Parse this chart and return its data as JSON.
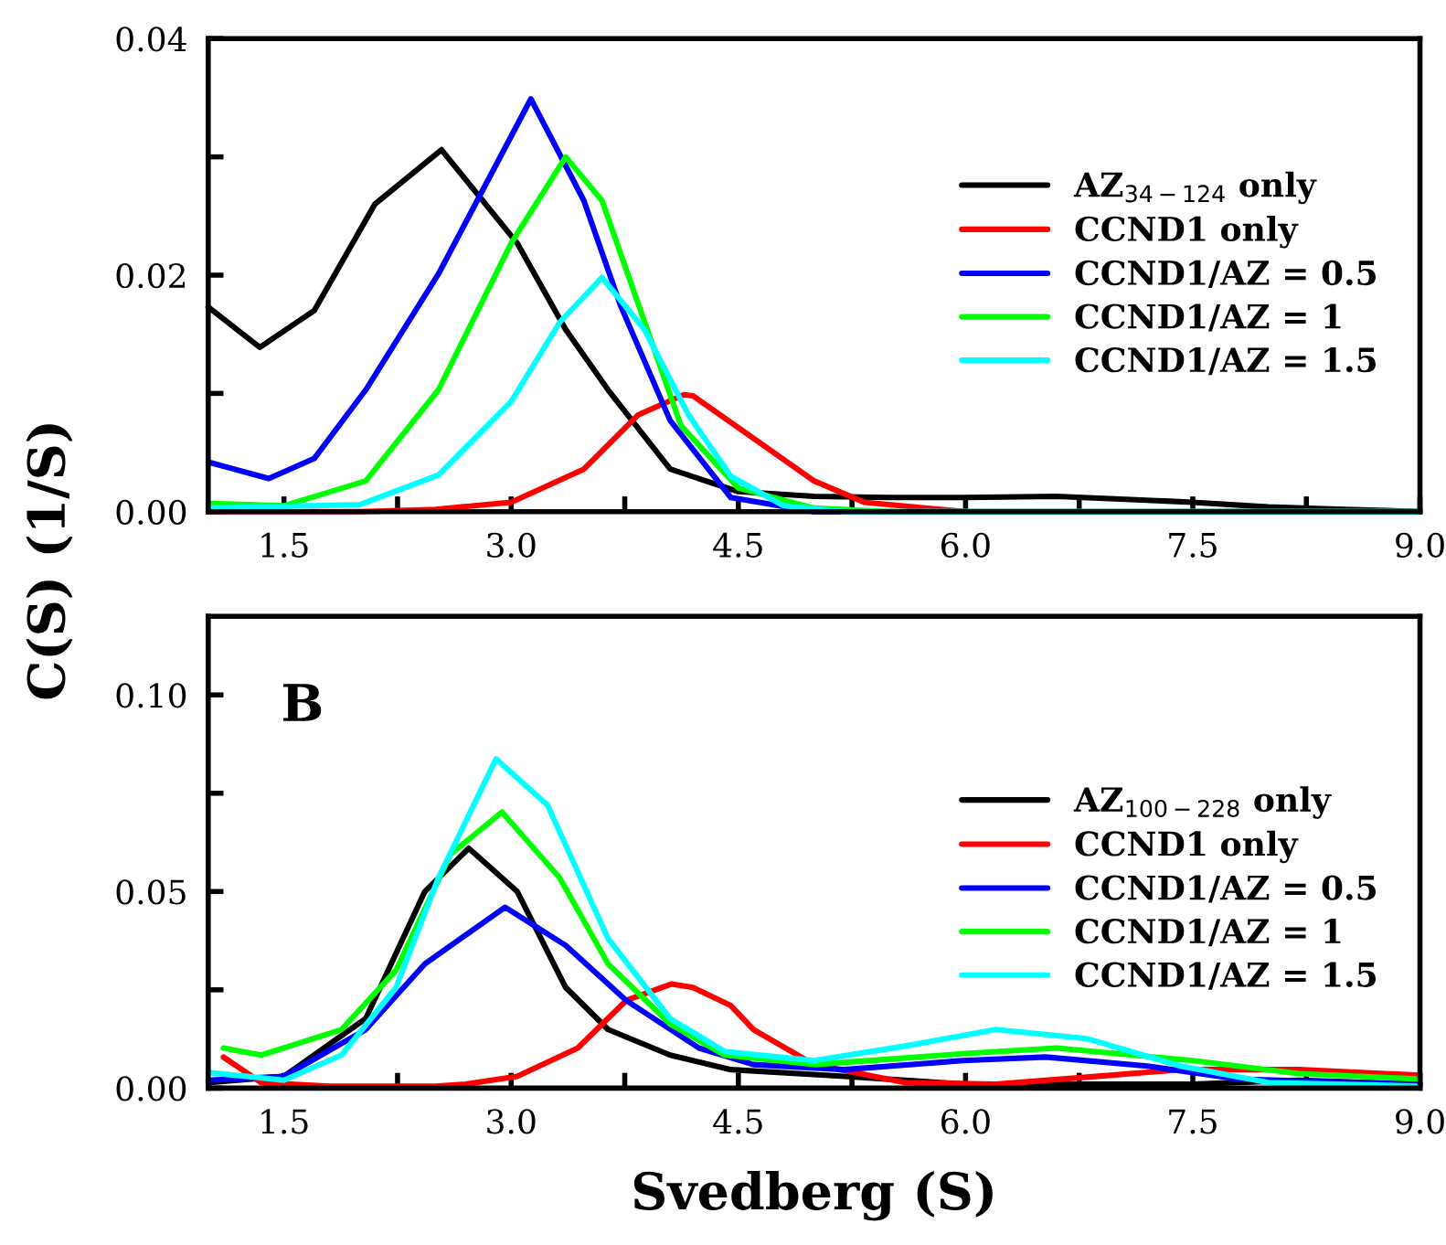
{
  "chart_data": [
    {
      "type": "line",
      "ylabel": "C(S) (1/S)",
      "xlim": [
        1.0,
        9.0
      ],
      "ylim": [
        0,
        0.04
      ],
      "xticks": [
        1.5,
        {
          "value": 2.25,
          "label": null
        },
        {
          "value": 3,
          "label": "3.0"
        },
        {
          "value": 3.75,
          "label": null
        },
        4.5,
        {
          "value": 5.25,
          "label": null
        },
        {
          "value": 6,
          "label": "6.0"
        },
        {
          "value": 6.75,
          "label": null
        },
        7.5,
        {
          "value": 8.25,
          "label": null
        },
        {
          "value": 9,
          "label": "9.0"
        }
      ],
      "yticks": [
        {
          "value": 0,
          "label": "0.00"
        },
        {
          "value": 0.01,
          "label": null
        },
        {
          "value": 0.02,
          "label": "0.02"
        },
        {
          "value": 0.03,
          "label": null
        },
        0.04
      ],
      "legend": "right",
      "grid": false,
      "marker": "none",
      "line_style": "solid",
      "series": [
        {
          "name": "AZ$_{34−124}$ only",
          "color": "#000000",
          "x": [
            1.0,
            1.34,
            1.7,
            2.1,
            2.54,
            3.04,
            3.36,
            3.64,
            4.05,
            4.5,
            5.0,
            5.5,
            6.0,
            6.6,
            7.5,
            8.0,
            8.5,
            9.0
          ],
          "values": [
            0.0173,
            0.0139,
            0.017,
            0.026,
            0.0306,
            0.0227,
            0.0154,
            0.0103,
            0.0036,
            0.0017,
            0.0013,
            0.0012,
            0.0012,
            0.0013,
            0.0008,
            0.0004,
            0.0002,
            0.0
          ]
        },
        {
          "name": "CCND1 only",
          "color": "#ff0000",
          "x": [
            1.0,
            2.0,
            2.5,
            3.0,
            3.48,
            3.84,
            4.14,
            4.2,
            4.6,
            5.0,
            5.33,
            6.0,
            9.0
          ],
          "values": [
            0.0,
            0.0,
            0.0002,
            0.0008,
            0.0036,
            0.0082,
            0.0099,
            0.0098,
            0.0062,
            0.0026,
            0.0008,
            0.0,
            0.0
          ]
        },
        {
          "name": "CCND1/AZ = 0.5",
          "color": "#0000ff",
          "x": [
            1.0,
            1.4,
            1.7,
            2.04,
            2.52,
            3.13,
            3.48,
            3.72,
            4.05,
            4.45,
            5.0,
            9.0
          ],
          "values": [
            0.0042,
            0.0028,
            0.0045,
            0.0103,
            0.0201,
            0.0349,
            0.0263,
            0.0175,
            0.0077,
            0.0012,
            0.0,
            0.0
          ]
        },
        {
          "name": "CCND1/AZ = 1",
          "color": "#00ff00",
          "x": [
            1.0,
            1.5,
            2.04,
            2.52,
            3.0,
            3.36,
            3.6,
            3.8,
            4.12,
            4.5,
            5.0,
            5.5,
            9.0
          ],
          "values": [
            0.0007,
            0.0005,
            0.0026,
            0.0103,
            0.0227,
            0.03,
            0.0263,
            0.019,
            0.0073,
            0.002,
            0.0003,
            0.0,
            0.0
          ]
        },
        {
          "name": "CCND1/AZ = 1.5",
          "color": "#00ffff",
          "x": [
            1.0,
            2.0,
            2.52,
            3.0,
            3.32,
            3.6,
            3.88,
            4.17,
            4.45,
            4.8,
            5.2,
            9.0
          ],
          "values": [
            0.0003,
            0.0006,
            0.0031,
            0.0093,
            0.016,
            0.0198,
            0.0154,
            0.0082,
            0.003,
            0.0005,
            0.0,
            0.0
          ]
        }
      ]
    },
    {
      "type": "line",
      "xlabel": "Svedberg (S)",
      "annotations": [
        "B"
      ],
      "xlim": [
        1.0,
        9.0
      ],
      "ylim": [
        0,
        0.12
      ],
      "xticks": [
        1.5,
        {
          "value": 2.25,
          "label": null
        },
        {
          "value": 3,
          "label": "3.0"
        },
        {
          "value": 3.75,
          "label": null
        },
        4.5,
        {
          "value": 5.25,
          "label": null
        },
        {
          "value": 6,
          "label": "6.0"
        },
        {
          "value": 6.75,
          "label": null
        },
        7.5,
        {
          "value": 8.25,
          "label": null
        },
        {
          "value": 9,
          "label": "9.0"
        }
      ],
      "yticks": [
        {
          "value": 0,
          "label": "0.00"
        },
        {
          "value": 0.025,
          "label": null
        },
        0.05,
        {
          "value": 0.075,
          "label": null
        },
        {
          "value": 0.1,
          "label": "0.10"
        }
      ],
      "legend": "right",
      "grid": false,
      "marker": "none",
      "line_style": "solid",
      "series": [
        {
          "name": "AZ$_{100−228}$ only",
          "color": "#000000",
          "x": [
            1.0,
            1.5,
            2.04,
            2.43,
            2.72,
            3.04,
            3.36,
            3.64,
            4.05,
            4.45,
            5.2,
            6.0,
            7.5,
            8.2,
            9.0
          ],
          "values": [
            0.0014,
            0.003,
            0.0177,
            0.05,
            0.061,
            0.05,
            0.0256,
            0.0149,
            0.0084,
            0.0047,
            0.003,
            0.001,
            0.001,
            0.002,
            0.001
          ]
        },
        {
          "name": "CCND1 only",
          "color": "#ff0000",
          "x": [
            1.1,
            1.35,
            1.8,
            2.5,
            2.7,
            3.04,
            3.44,
            3.76,
            4.06,
            4.2,
            4.45,
            4.6,
            5.0,
            5.6,
            6.2,
            6.8,
            7.42,
            8.2,
            9.0
          ],
          "values": [
            0.0079,
            0.0014,
            0.0005,
            0.0005,
            0.001,
            0.003,
            0.0102,
            0.0223,
            0.0265,
            0.0256,
            0.021,
            0.0149,
            0.006,
            0.0014,
            0.001,
            0.0028,
            0.0047,
            0.0047,
            0.0033
          ]
        },
        {
          "name": "CCND1/AZ = 0.5",
          "color": "#0000ff",
          "x": [
            1.0,
            1.5,
            2.04,
            2.43,
            2.96,
            3.36,
            3.76,
            4.24,
            4.6,
            5.2,
            5.98,
            6.53,
            7.2,
            7.8,
            9.0
          ],
          "values": [
            0.002,
            0.003,
            0.0149,
            0.0316,
            0.046,
            0.0363,
            0.0223,
            0.0102,
            0.006,
            0.0047,
            0.007,
            0.0079,
            0.0056,
            0.0023,
            0.001
          ]
        },
        {
          "name": "CCND1/AZ = 1",
          "color": "#00ff00",
          "x": [
            1.1,
            1.35,
            1.88,
            2.24,
            2.6,
            2.94,
            3.32,
            3.64,
            4.05,
            4.41,
            5.0,
            6.0,
            6.6,
            7.5,
            8.2,
            9.0
          ],
          "values": [
            0.0102,
            0.0084,
            0.0149,
            0.03,
            0.0595,
            0.0702,
            0.0535,
            0.0316,
            0.0163,
            0.0084,
            0.006,
            0.0088,
            0.0102,
            0.007,
            0.0037,
            0.0023
          ]
        },
        {
          "name": "CCND1/AZ = 1.5",
          "color": "#00ffff",
          "x": [
            1.0,
            1.5,
            1.88,
            2.24,
            2.52,
            2.9,
            3.24,
            3.64,
            4.05,
            4.41,
            5.0,
            5.6,
            6.2,
            6.8,
            7.42,
            8.0,
            9.0
          ],
          "values": [
            0.004,
            0.002,
            0.0084,
            0.0256,
            0.0535,
            0.0837,
            0.072,
            0.038,
            0.0177,
            0.0093,
            0.007,
            0.0107,
            0.0149,
            0.0126,
            0.0056,
            0.0014,
            0.0005
          ]
        }
      ]
    }
  ]
}
